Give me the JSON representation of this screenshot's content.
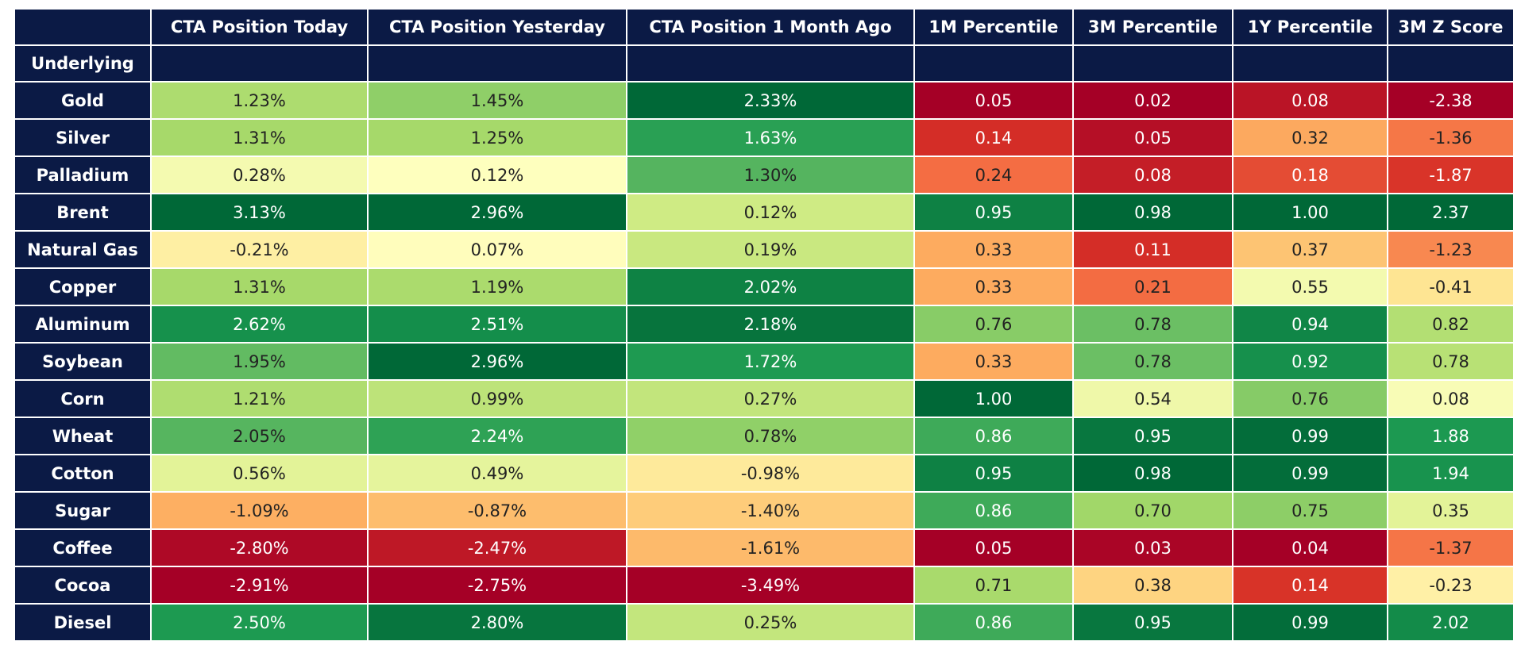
{
  "table": {
    "index_label": "Underlying",
    "columns": [
      "CTA Position Today",
      "CTA Position Yesterday",
      "CTA Position 1 Month Ago",
      "1M Percentile",
      "3M Percentile",
      "1Y Percentile",
      "3M Z Score"
    ],
    "rows": [
      {
        "label": "Gold",
        "cells": [
          "1.23%",
          "1.45%",
          "2.33%",
          "0.05",
          "0.02",
          "0.08",
          "-2.38"
        ]
      },
      {
        "label": "Silver",
        "cells": [
          "1.31%",
          "1.25%",
          "1.63%",
          "0.14",
          "0.05",
          "0.32",
          "-1.36"
        ]
      },
      {
        "label": "Palladium",
        "cells": [
          "0.28%",
          "0.12%",
          "1.30%",
          "0.24",
          "0.08",
          "0.18",
          "-1.87"
        ]
      },
      {
        "label": "Brent",
        "cells": [
          "3.13%",
          "2.96%",
          "0.12%",
          "0.95",
          "0.98",
          "1.00",
          "2.37"
        ]
      },
      {
        "label": "Natural Gas",
        "cells": [
          "-0.21%",
          "0.07%",
          "0.19%",
          "0.33",
          "0.11",
          "0.37",
          "-1.23"
        ]
      },
      {
        "label": "Copper",
        "cells": [
          "1.31%",
          "1.19%",
          "2.02%",
          "0.33",
          "0.21",
          "0.55",
          "-0.41"
        ]
      },
      {
        "label": "Aluminum",
        "cells": [
          "2.62%",
          "2.51%",
          "2.18%",
          "0.76",
          "0.78",
          "0.94",
          "0.82"
        ]
      },
      {
        "label": "Soybean",
        "cells": [
          "1.95%",
          "2.96%",
          "1.72%",
          "0.33",
          "0.78",
          "0.92",
          "0.78"
        ]
      },
      {
        "label": "Corn",
        "cells": [
          "1.21%",
          "0.99%",
          "0.27%",
          "1.00",
          "0.54",
          "0.76",
          "0.08"
        ]
      },
      {
        "label": "Wheat",
        "cells": [
          "2.05%",
          "2.24%",
          "0.78%",
          "0.86",
          "0.95",
          "0.99",
          "1.88"
        ]
      },
      {
        "label": "Cotton",
        "cells": [
          "0.56%",
          "0.49%",
          "-0.98%",
          "0.95",
          "0.98",
          "0.99",
          "1.94"
        ]
      },
      {
        "label": "Sugar",
        "cells": [
          "-1.09%",
          "-0.87%",
          "-1.40%",
          "0.86",
          "0.70",
          "0.75",
          "0.35"
        ]
      },
      {
        "label": "Coffee",
        "cells": [
          "-2.80%",
          "-2.47%",
          "-1.61%",
          "0.05",
          "0.03",
          "0.04",
          "-1.37"
        ]
      },
      {
        "label": "Cocoa",
        "cells": [
          "-2.91%",
          "-2.75%",
          "-3.49%",
          "0.71",
          "0.38",
          "0.14",
          "-0.23"
        ]
      },
      {
        "label": "Diesel",
        "cells": [
          "2.50%",
          "2.80%",
          "0.25%",
          "0.86",
          "0.95",
          "0.99",
          "2.02"
        ]
      }
    ]
  }
}
